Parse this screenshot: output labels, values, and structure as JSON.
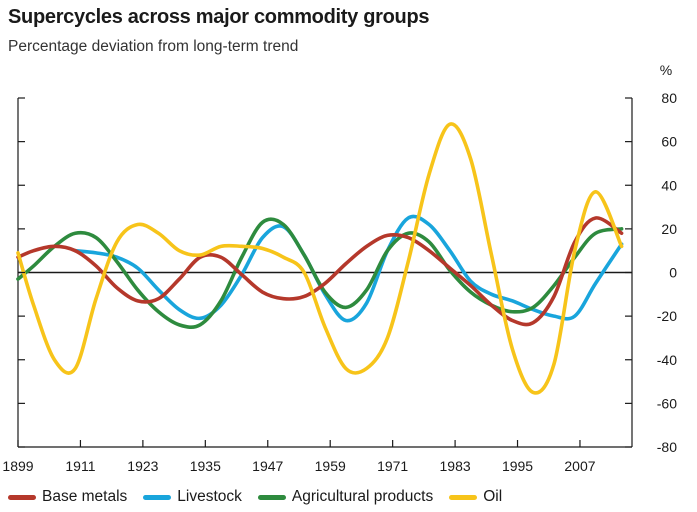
{
  "chart_data": {
    "type": "line",
    "title": "Supercycles across major commodity groups",
    "subtitle": "Percentage deviation from long-term trend",
    "ylabel": "%",
    "xlabel": "",
    "xlim": [
      1899,
      2017
    ],
    "ylim": [
      -80,
      80
    ],
    "x_ticks": [
      "1899",
      "1911",
      "1923",
      "1935",
      "1947",
      "1959",
      "1971",
      "1983",
      "1995",
      "2007"
    ],
    "y_ticks": [
      "80",
      "60",
      "40",
      "20",
      "0",
      "-20",
      "-40",
      "-60",
      "-80"
    ],
    "grid": false,
    "legend_position": "bottom",
    "series": [
      {
        "name": "Base metals",
        "color": "#b5382b",
        "x": [
          1899,
          1902,
          1906,
          1910,
          1914,
          1918,
          1922,
          1926,
          1930,
          1934,
          1938,
          1942,
          1946,
          1950,
          1954,
          1958,
          1962,
          1966,
          1970,
          1974,
          1978,
          1982,
          1986,
          1990,
          1994,
          1998,
          2002,
          2006,
          2010,
          2015
        ],
        "values": [
          7,
          10,
          12,
          10,
          3,
          -7,
          -13,
          -12,
          -3,
          7,
          7,
          -1,
          -9,
          -12,
          -11,
          -5,
          4,
          12,
          17,
          16,
          10,
          2,
          -6,
          -15,
          -22,
          -23,
          -11,
          14,
          25,
          18
        ]
      },
      {
        "name": "Livestock",
        "color": "#19a5dc",
        "x": [
          1910,
          1914,
          1918,
          1922,
          1926,
          1930,
          1934,
          1938,
          1942,
          1946,
          1950,
          1954,
          1958,
          1962,
          1966,
          1970,
          1974,
          1978,
          1982,
          1986,
          1990,
          1994,
          1998,
          2002,
          2006,
          2010,
          2015
        ],
        "values": [
          10,
          9,
          7,
          2,
          -8,
          -17,
          -21,
          -15,
          -1,
          16,
          21,
          8,
          -10,
          -22,
          -14,
          10,
          25,
          22,
          10,
          -4,
          -10,
          -13,
          -17,
          -20,
          -20,
          -5,
          13
        ]
      },
      {
        "name": "Agricultural products",
        "color": "#2e8b3e",
        "x": [
          1899,
          1902,
          1906,
          1910,
          1914,
          1918,
          1922,
          1926,
          1930,
          1934,
          1938,
          1942,
          1946,
          1950,
          1954,
          1958,
          1962,
          1966,
          1970,
          1974,
          1978,
          1982,
          1986,
          1990,
          1994,
          1998,
          2002,
          2006,
          2010,
          2015
        ],
        "values": [
          -3,
          3,
          12,
          18,
          16,
          5,
          -8,
          -18,
          -24,
          -24,
          -13,
          7,
          23,
          22,
          8,
          -9,
          -16,
          -8,
          10,
          18,
          14,
          1,
          -9,
          -15,
          -18,
          -16,
          -6,
          7,
          18,
          20
        ]
      },
      {
        "name": "Oil",
        "color": "#f7c41a",
        "x": [
          1899,
          1902,
          1906,
          1910,
          1914,
          1918,
          1922,
          1926,
          1930,
          1934,
          1938,
          1942,
          1946,
          1950,
          1954,
          1958,
          1962,
          1966,
          1970,
          1974,
          1978,
          1982,
          1986,
          1990,
          1994,
          1998,
          2002,
          2006,
          2010,
          2015
        ],
        "values": [
          9,
          -15,
          -40,
          -44,
          -12,
          14,
          22,
          18,
          10,
          8,
          12,
          12,
          11,
          7,
          0,
          -25,
          -44,
          -44,
          -30,
          5,
          45,
          68,
          52,
          8,
          -35,
          -55,
          -42,
          10,
          37,
          12
        ]
      }
    ]
  }
}
